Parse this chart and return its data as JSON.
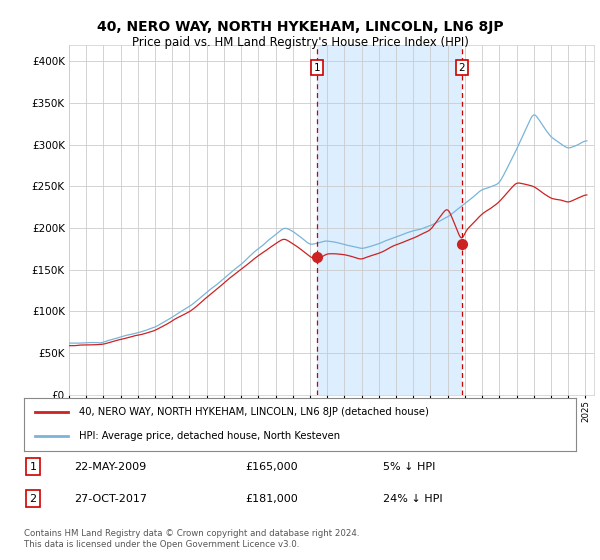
{
  "title": "40, NERO WAY, NORTH HYKEHAM, LINCOLN, LN6 8JP",
  "subtitle": "Price paid vs. HM Land Registry's House Price Index (HPI)",
  "background_color": "#ffffff",
  "plot_bg_color": "#ffffff",
  "grid_color": "#cccccc",
  "hpi_color": "#7ab4d8",
  "price_color": "#cc2222",
  "dashed_line_color": "#cc0000",
  "shade_color": "#ddeeff",
  "ylim": [
    0,
    420000
  ],
  "yticks": [
    0,
    50000,
    100000,
    150000,
    200000,
    250000,
    300000,
    350000,
    400000
  ],
  "ytick_labels": [
    "£0",
    "£50K",
    "£100K",
    "£150K",
    "£200K",
    "£250K",
    "£300K",
    "£350K",
    "£400K"
  ],
  "ann1_year": 2009.4,
  "ann2_year": 2017.83,
  "ann1_price": 165000,
  "ann2_price": 181000,
  "ann1_text": "22-MAY-2009",
  "ann2_text": "27-OCT-2017",
  "ann1_price_str": "£165,000",
  "ann2_price_str": "£181,000",
  "ann1_pct": "5% ↓ HPI",
  "ann2_pct": "24% ↓ HPI",
  "legend_line1": "40, NERO WAY, NORTH HYKEHAM, LINCOLN, LN6 8JP (detached house)",
  "legend_line2": "HPI: Average price, detached house, North Kesteven",
  "footer": "Contains HM Land Registry data © Crown copyright and database right 2024.\nThis data is licensed under the Open Government Licence v3.0.",
  "xlim_start": 1995.0,
  "xlim_end": 2025.5
}
